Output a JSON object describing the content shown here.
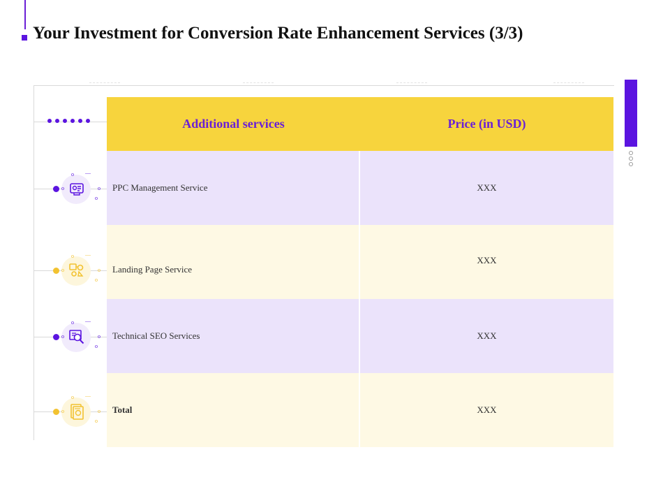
{
  "slide": {
    "title": "Your Investment for Conversion Rate Enhancement Services (3/3)"
  },
  "table": {
    "headers": {
      "service": "Additional  services",
      "price": "Price (in USD)"
    },
    "rows": [
      {
        "service": "PPC Management Service",
        "price": "XXX",
        "icon": "ppc-icon"
      },
      {
        "service": "Landing Page Service",
        "price": "XXX",
        "icon": "landing-page-icon"
      },
      {
        "service": "Technical SEO Services",
        "price": "XXX",
        "icon": "seo-magnifier-icon"
      },
      {
        "service": "Total",
        "price": "XXX",
        "icon": "invoice-icon"
      }
    ]
  },
  "colors": {
    "accent_purple": "#5b14e0",
    "header_yellow": "#f7d43d",
    "row_lavender": "#ebe3fb",
    "row_cream": "#fef9e4",
    "icon_yellow": "#f2c230"
  }
}
